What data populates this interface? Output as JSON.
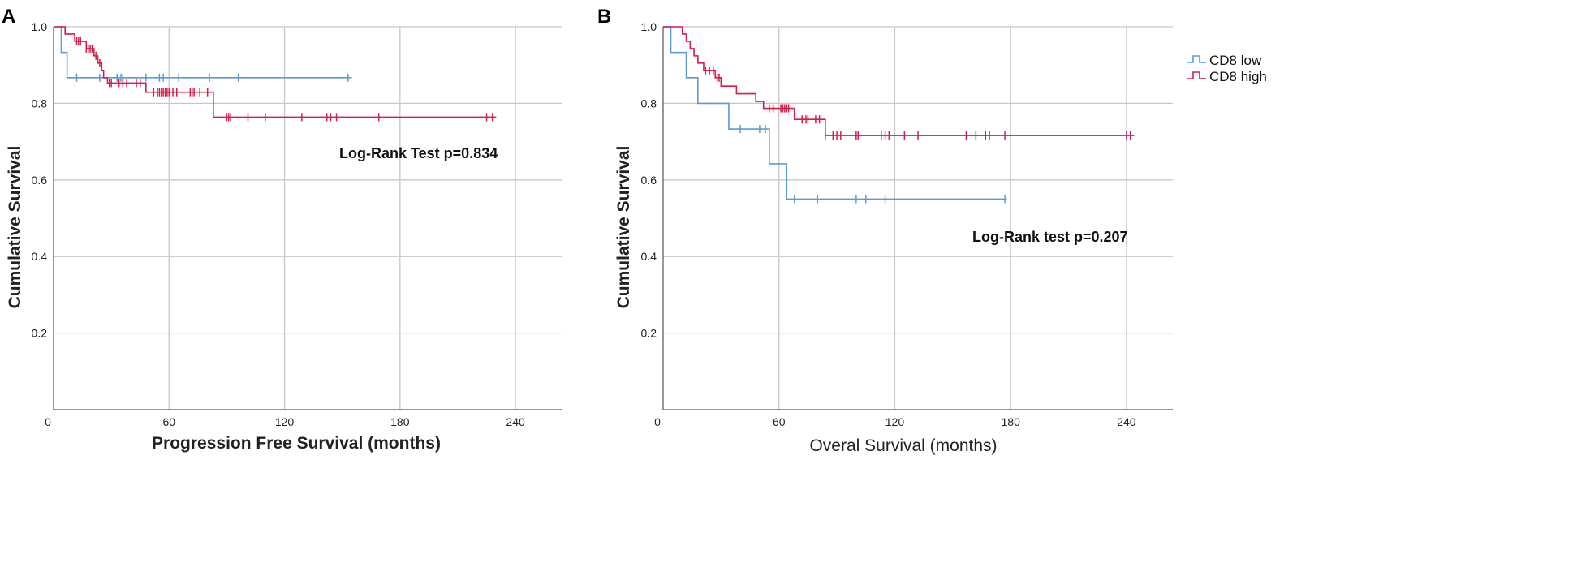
{
  "chart_data": [
    {
      "panel": "A",
      "type": "line",
      "subtype": "kaplan-meier",
      "xlabel": "Progression Free Survival (months)",
      "ylabel": "Cumulative Survival",
      "xlim": [
        0,
        264
      ],
      "ylim": [
        0,
        1.0
      ],
      "xticks": [
        0,
        60,
        120,
        180,
        240
      ],
      "yticks": [
        0.2,
        0.4,
        0.6,
        0.8,
        1.0
      ],
      "xtick_labels": [
        "0",
        "60",
        "120",
        "180",
        "240"
      ],
      "ytick_labels": [
        "0.2",
        "0.4",
        "0.6",
        "0.8",
        "1.0"
      ],
      "annotation": "Log-Rank Test p=0.834",
      "series": [
        {
          "name": "CD8 low",
          "color": "#5b9bd5",
          "steps": [
            [
              0,
              1.0
            ],
            [
              4,
              0.933
            ],
            [
              7,
              0.867
            ],
            [
              155,
              0.867
            ]
          ],
          "censors": [
            12,
            24,
            33,
            35,
            36,
            48,
            55,
            57,
            65,
            81,
            96,
            153
          ]
        },
        {
          "name": "CD8 high",
          "color": "#d81b4a",
          "steps": [
            [
              0,
              1.0
            ],
            [
              6,
              0.981
            ],
            [
              11,
              0.962
            ],
            [
              17,
              0.943
            ],
            [
              21,
              0.924
            ],
            [
              23,
              0.905
            ],
            [
              25,
              0.886
            ],
            [
              26,
              0.867
            ],
            [
              28,
              0.853
            ],
            [
              48,
              0.829
            ],
            [
              83,
              0.764
            ],
            [
              230,
              0.764
            ]
          ],
          "censors": [
            12,
            13,
            14,
            17,
            18,
            19,
            20,
            22,
            24,
            29,
            30,
            34,
            36,
            38,
            43,
            45,
            52,
            54,
            55,
            56,
            57,
            58,
            59,
            60,
            62,
            64,
            71,
            72,
            73,
            76,
            80,
            90,
            91,
            92,
            101,
            110,
            129,
            142,
            144,
            147,
            169,
            225,
            228
          ]
        }
      ]
    },
    {
      "panel": "B",
      "type": "line",
      "subtype": "kaplan-meier",
      "xlabel": "Overal Survival (months)",
      "ylabel": "Cumulative Survival",
      "xlim": [
        0,
        264
      ],
      "ylim": [
        0,
        1.0
      ],
      "xticks": [
        0,
        60,
        120,
        180,
        240
      ],
      "yticks": [
        0.2,
        0.4,
        0.6,
        0.8,
        1.0
      ],
      "xtick_labels": [
        "0",
        "60",
        "120",
        "180",
        "240"
      ],
      "ytick_labels": [
        "0.2",
        "0.4",
        "0.6",
        "0.8",
        "1.0"
      ],
      "annotation": "Log-Rank test p=0.207",
      "legend": [
        {
          "label": "CD8 low",
          "color": "#5b9bd5"
        },
        {
          "label": "CD8 high",
          "color": "#d81b4a"
        }
      ],
      "series": [
        {
          "name": "CD8 low",
          "color": "#5b9bd5",
          "steps": [
            [
              0,
              1.0
            ],
            [
              4,
              0.933
            ],
            [
              12,
              0.867
            ],
            [
              18,
              0.8
            ],
            [
              34,
              0.733
            ],
            [
              55,
              0.642
            ],
            [
              64,
              0.55
            ],
            [
              178,
              0.55
            ]
          ],
          "censors": [
            40,
            50,
            53,
            68,
            80,
            100,
            105,
            115,
            177
          ]
        },
        {
          "name": "CD8 high",
          "color": "#d81b4a",
          "steps": [
            [
              0,
              1.0
            ],
            [
              10,
              0.981
            ],
            [
              12,
              0.962
            ],
            [
              14,
              0.943
            ],
            [
              16,
              0.924
            ],
            [
              18,
              0.905
            ],
            [
              21,
              0.886
            ],
            [
              27,
              0.867
            ],
            [
              30,
              0.845
            ],
            [
              38,
              0.825
            ],
            [
              48,
              0.805
            ],
            [
              52,
              0.787
            ],
            [
              68,
              0.758
            ],
            [
              84,
              0.716
            ],
            [
              244,
              0.716
            ]
          ],
          "censors": [
            22,
            24,
            26,
            28,
            29,
            55,
            57,
            61,
            62,
            63,
            64,
            65,
            72,
            74,
            75,
            79,
            81,
            84,
            88,
            90,
            92,
            100,
            101,
            113,
            115,
            117,
            125,
            132,
            157,
            162,
            167,
            169,
            177,
            240,
            242
          ]
        }
      ]
    }
  ]
}
